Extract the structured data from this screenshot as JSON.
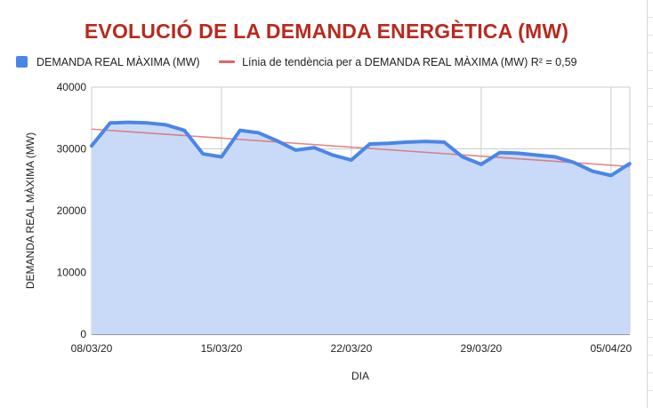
{
  "chart_data": {
    "type": "area",
    "title": "EVOLUCIÓ DE LA DEMANDA ENERGÈTICA (MW)",
    "xlabel": "DIA",
    "ylabel": "DEMANDA REAL MÀXIMA (MW)",
    "ylim": [
      0,
      40000
    ],
    "yticks": [
      "0",
      "10000",
      "20000",
      "30000",
      "40000"
    ],
    "xticks": [
      "08/03/20",
      "15/03/20",
      "22/03/20",
      "29/03/20",
      "05/04/20"
    ],
    "grid": true,
    "legend_position": "top-left",
    "colors": {
      "title": "#b72a1f",
      "series": "#4a86e8",
      "area": "#c9daf8",
      "trend": "#e06666",
      "grid": "#cccccc"
    },
    "series": [
      {
        "name": "DEMANDA REAL MÀXIMA (MW)",
        "x": [
          "08/03/20",
          "09/03/20",
          "10/03/20",
          "11/03/20",
          "12/03/20",
          "13/03/20",
          "14/03/20",
          "15/03/20",
          "16/03/20",
          "17/03/20",
          "18/03/20",
          "19/03/20",
          "20/03/20",
          "21/03/20",
          "22/03/20",
          "23/03/20",
          "24/03/20",
          "25/03/20",
          "26/03/20",
          "27/03/20",
          "28/03/20",
          "29/03/20",
          "30/03/20",
          "31/03/20",
          "01/04/20",
          "02/04/20",
          "03/04/20",
          "04/04/20",
          "05/04/20",
          "06/04/20"
        ],
        "values": [
          30500,
          34200,
          34300,
          34200,
          33900,
          33000,
          29200,
          28700,
          33000,
          32600,
          31300,
          29800,
          30200,
          29000,
          28200,
          30800,
          30900,
          31100,
          31200,
          31100,
          28700,
          27500,
          29400,
          29300,
          29000,
          28700,
          27800,
          26400,
          25700,
          27600
        ]
      }
    ],
    "trendline": {
      "label": "Línia de tendència per a DEMANDA REAL MÀXIMA (MW) R² = 0,59",
      "start_value": 33200,
      "end_value": 27150
    }
  }
}
